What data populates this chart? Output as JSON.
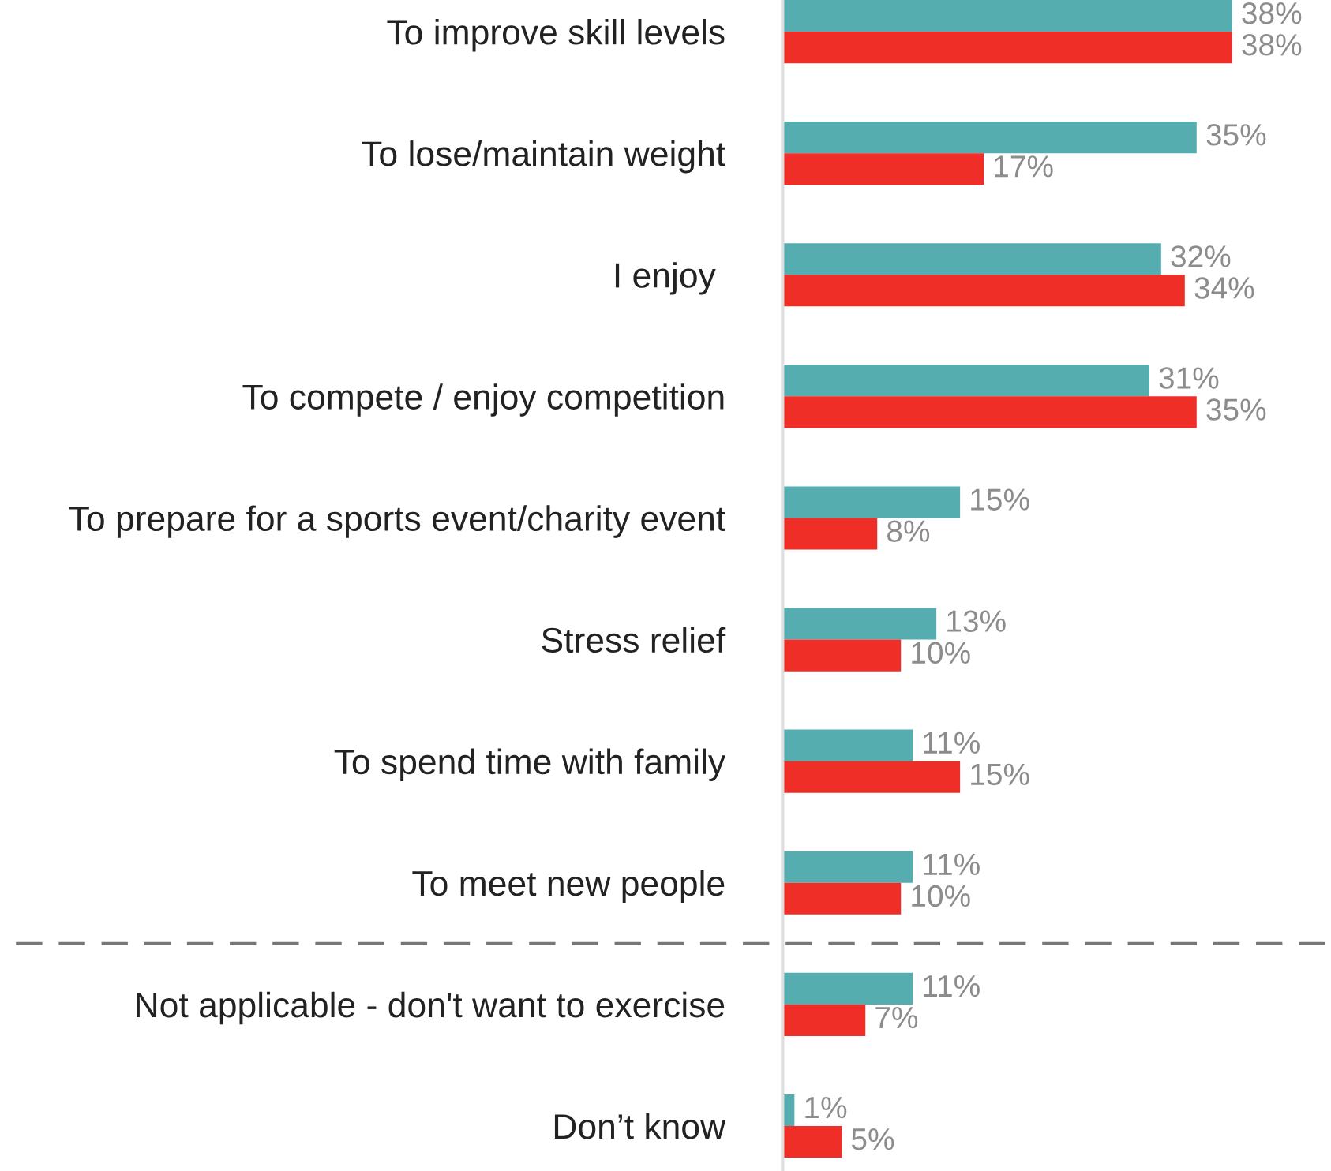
{
  "chart_data": {
    "type": "bar",
    "orientation": "horizontal",
    "categories": [
      "To improve skill levels",
      "To lose/maintain weight",
      "I enjoy ",
      "To compete / enjoy competition",
      "To prepare for a sports event/charity event",
      "Stress relief",
      "To spend time with family",
      "To meet new people",
      "Not applicable - don't want to exercise",
      "Don’t know"
    ],
    "series": [
      {
        "color": "#55adb0",
        "values": [
          38,
          35,
          32,
          31,
          15,
          13,
          11,
          11,
          11,
          1
        ],
        "value_labels": [
          "38%",
          "35%",
          "32%",
          "31%",
          "15%",
          "13%",
          "11%",
          "11%",
          "11%",
          "1%"
        ]
      },
      {
        "color": "#ee2e27",
        "values": [
          38,
          17,
          34,
          35,
          8,
          10,
          15,
          10,
          7,
          5
        ],
        "value_labels": [
          "38%",
          "17%",
          "34%",
          "35%",
          "8%",
          "10%",
          "15%",
          "10%",
          "7%",
          "5%"
        ]
      }
    ]
  }
}
